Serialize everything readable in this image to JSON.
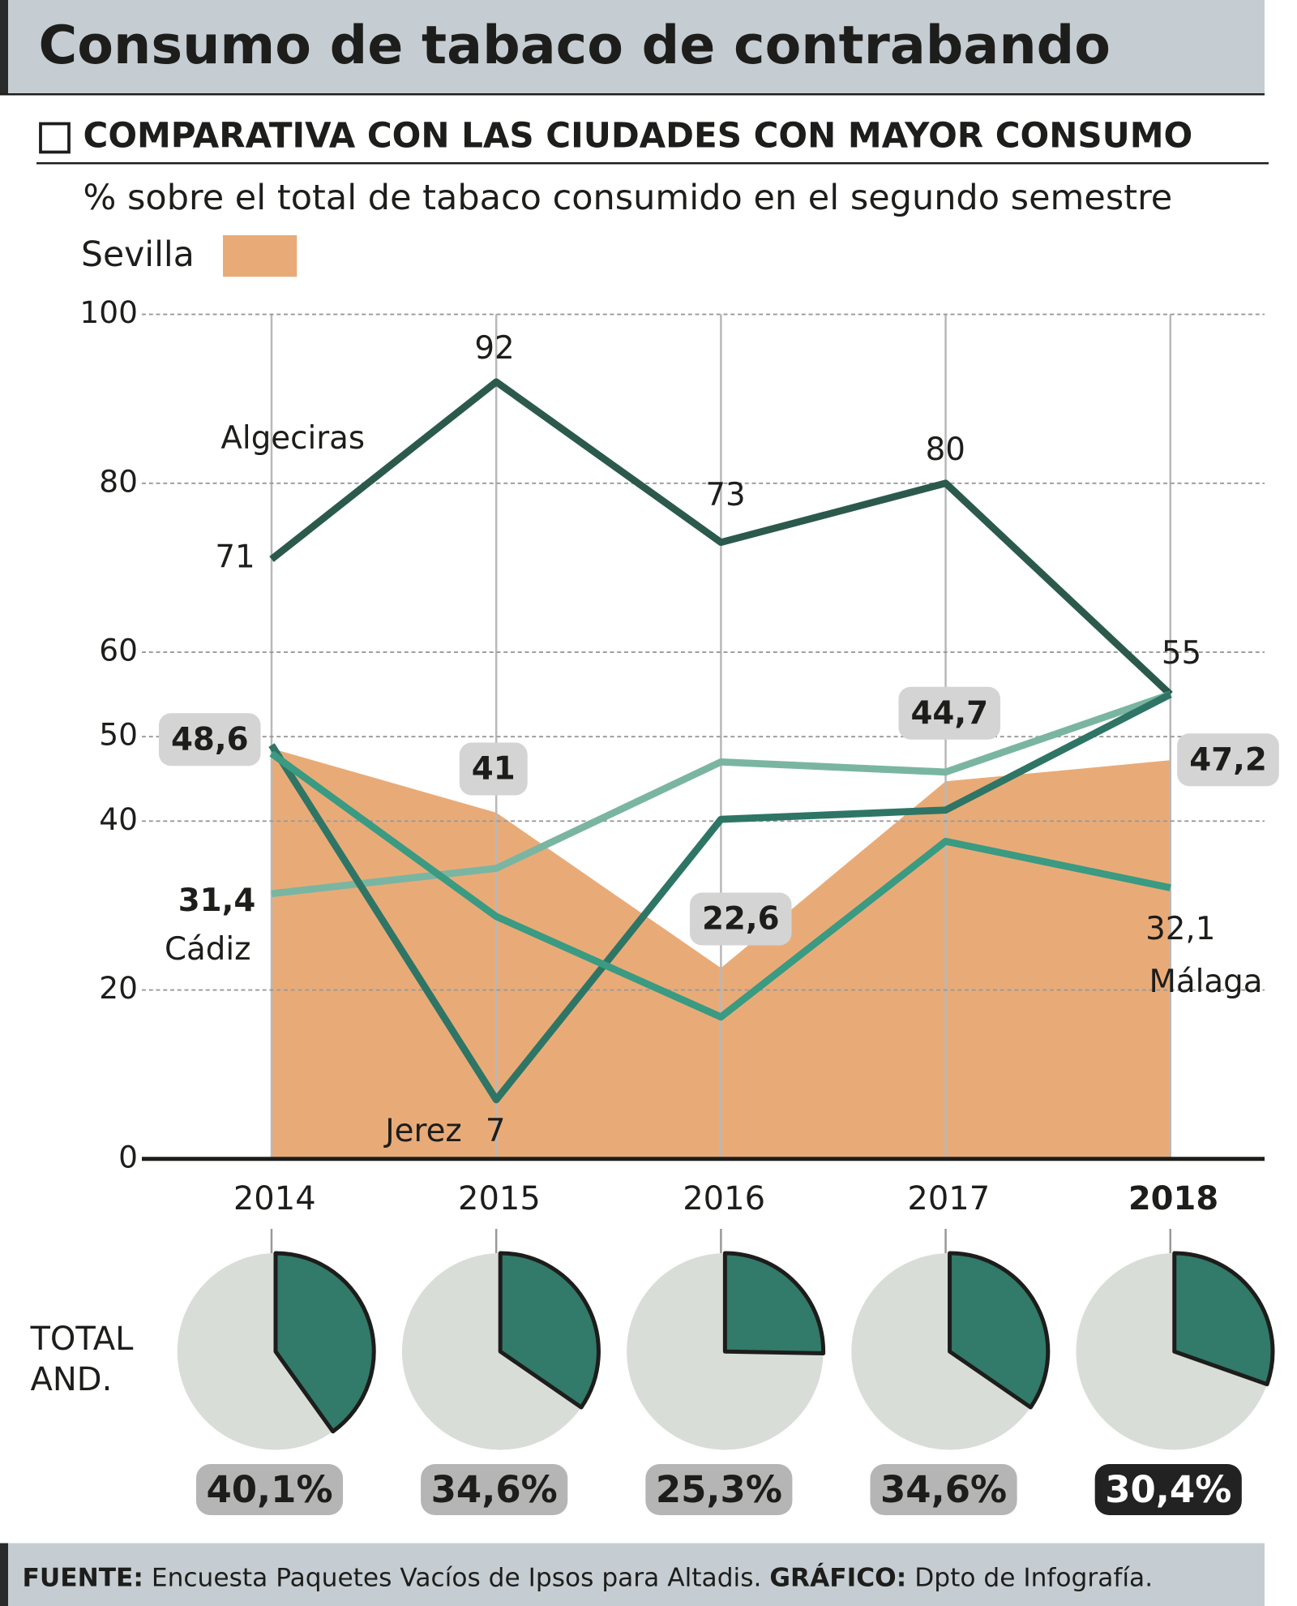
{
  "header": {
    "title": "Consumo de tabaco de contrabando",
    "subtitle": "COMPARATIVA CON LAS CIUDADES CON MAYOR CONSUMO",
    "note": "% sobre el total de tabaco consumido en el segundo semestre"
  },
  "chart_data": [
    {
      "type": "line",
      "categories": [
        "2014",
        "2015",
        "2016",
        "2017",
        "2018"
      ],
      "highlight_index": 4,
      "ylim": [
        0,
        100
      ],
      "yticks": [
        0,
        20,
        40,
        50,
        60,
        80,
        100
      ],
      "grid": true,
      "series": [
        {
          "name": "Sevilla",
          "type": "area",
          "color": "#e8ab78",
          "values": [
            48.6,
            41,
            22.6,
            44.7,
            47.2
          ],
          "value_labels": [
            "48,6",
            "41",
            "22,6",
            "44,7",
            "47,2"
          ]
        },
        {
          "name": "Algeciras",
          "color": "#2b5a4c",
          "values": [
            71,
            92,
            73,
            80,
            55
          ]
        },
        {
          "name": "Cádiz",
          "color": "#7ab5a2",
          "values": [
            31.4,
            34.4,
            47,
            45.8,
            55
          ],
          "value_labels": [
            "31,4",
            null,
            null,
            null,
            null
          ]
        },
        {
          "name": "Jerez",
          "color": "#2e7565",
          "values": [
            49,
            7,
            40.2,
            41.3,
            55
          ],
          "value_labels": [
            null,
            "7",
            null,
            null,
            null
          ]
        },
        {
          "name": "Málaga",
          "color": "#3a9a82",
          "values": [
            48,
            28.7,
            16.8,
            37.6,
            32.1
          ],
          "value_labels": [
            null,
            null,
            null,
            null,
            "32,1"
          ]
        }
      ]
    },
    {
      "type": "pie",
      "label": "TOTAL AND.",
      "color": "#327a6a",
      "highlight_index": 4,
      "values": [
        40.1,
        34.6,
        25.3,
        34.6,
        30.4
      ],
      "value_labels": [
        "40,1%",
        "34,6%",
        "25,3%",
        "34,6%",
        "30,4%"
      ]
    }
  ],
  "footer": {
    "source_label": "FUENTE:",
    "source": "Encuesta Paquetes Vacíos de Ipsos para Altadis.",
    "graphic_label": "GRÁFICO:",
    "graphic": "Dpto de Infografía."
  }
}
